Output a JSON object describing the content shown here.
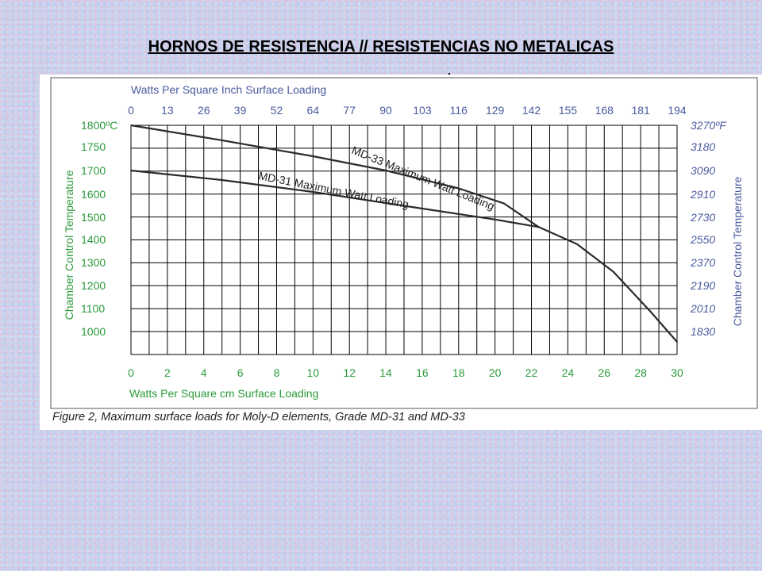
{
  "slide": {
    "title": "HORNOS DE RESISTENCIA // RESISTENCIAS NO METALICAS"
  },
  "colors": {
    "green_text": "#2a9a3a",
    "blue_text": "#4a5a9e",
    "grid": "#000000",
    "curve": "#2b2b2b"
  },
  "chart_data": {
    "type": "line",
    "caption": "Figure 2, Maximum surface loads for Moly-D elements, Grade MD-31 and MD-33",
    "top_axis_title": "Watts Per Square Inch Surface Loading",
    "top_ticks": [
      "0",
      "13",
      "26",
      "39",
      "52",
      "64",
      "77",
      "90",
      "103",
      "116",
      "129",
      "142",
      "155",
      "168",
      "181",
      "194"
    ],
    "bottom_axis_title": "Watts Per Square cm Surface Loading",
    "bottom_ticks": [
      "0",
      "2",
      "4",
      "6",
      "8",
      "10",
      "12",
      "14",
      "16",
      "18",
      "20",
      "22",
      "24",
      "26",
      "28",
      "30"
    ],
    "left_axis_title": "Chamber Control Temperature",
    "left_ticks": [
      {
        "label": "1800ºC",
        "value": 1800
      },
      {
        "label": "1750",
        "value": 1750
      },
      {
        "label": "1700",
        "value": 1700
      },
      {
        "label": "1600",
        "value": 1600
      },
      {
        "label": "1500",
        "value": 1500
      },
      {
        "label": "1400",
        "value": 1400
      },
      {
        "label": "1300",
        "value": 1300
      },
      {
        "label": "1200",
        "value": 1200
      },
      {
        "label": "1100",
        "value": 1100
      },
      {
        "label": "1000",
        "value": 1000
      }
    ],
    "right_axis_title": "Chamber Control Temperature",
    "right_ticks": [
      {
        "label": "3270ºF",
        "value": 1800
      },
      {
        "label": "3180",
        "value": 1750
      },
      {
        "label": "3090",
        "value": 1700
      },
      {
        "label": "2910",
        "value": 1600
      },
      {
        "label": "2730",
        "value": 1500
      },
      {
        "label": "2550",
        "value": 1400
      },
      {
        "label": "2370",
        "value": 1300
      },
      {
        "label": "2190",
        "value": 1200
      },
      {
        "label": "2010",
        "value": 1100
      },
      {
        "label": "1830",
        "value": 1000
      }
    ],
    "xlim": [
      0,
      30
    ],
    "series": [
      {
        "name": "MD-33 Maximum Watt Loading",
        "x": [
          0,
          5,
          10,
          14,
          18,
          20.5,
          22.4,
          24.5,
          26.5,
          28.5,
          30
        ],
        "y": [
          1800,
          1765,
          1730,
          1700,
          1625,
          1560,
          1456,
          1380,
          1260,
          1090,
          955
        ]
      },
      {
        "name": "MD-31 Maximum Watt Loading",
        "x": [
          0,
          5,
          10,
          15,
          20,
          22.4
        ],
        "y": [
          1700,
          1660,
          1610,
          1550,
          1490,
          1456
        ]
      }
    ]
  }
}
